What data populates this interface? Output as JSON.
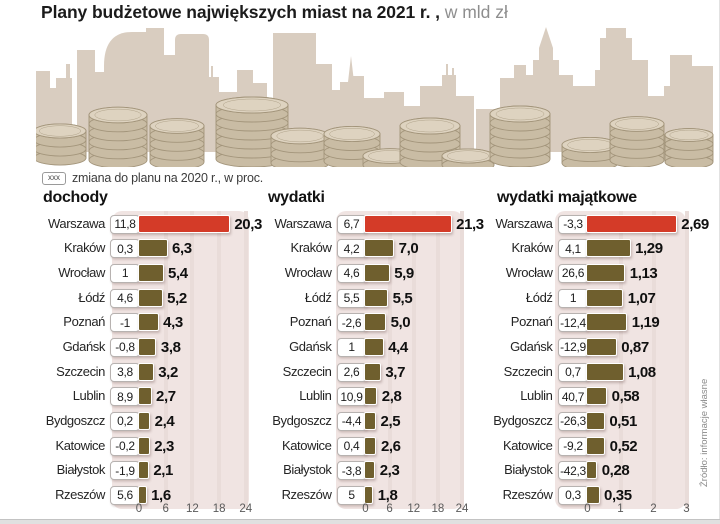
{
  "title": {
    "main": "Plany budżetowe największych miast na 2021 r. ,",
    "unit": "w mld zł"
  },
  "legend": {
    "marker": "xxx",
    "text": "zmiana do planu na 2020 r., w proc."
  },
  "source_note": "Źródło: informacje własne",
  "colors": {
    "highlight_bar": "#d43b28",
    "bar": "#6f5f2e",
    "panel_background": "#f0e4e2",
    "gridline": "#e9dcd9",
    "skyline": "#d9cdc0",
    "coin_side": "#c9bca4",
    "coin_top": "#ded3c0",
    "coin_stroke": "#a3957b",
    "title_text": "#1b1b1b",
    "unit_text": "#8e8e8e"
  },
  "chart_data": [
    {
      "type": "bar",
      "title": "dochody",
      "unit": "mld zł",
      "categories": [
        "Warszawa",
        "Kraków",
        "Wrocław",
        "Łódź",
        "Poznań",
        "Gdańsk",
        "Szczecin",
        "Lublin",
        "Bydgoszcz",
        "Katowice",
        "Białystok",
        "Rzeszów"
      ],
      "series": [
        {
          "name": "plan na 2021 (mld zł)",
          "values": [
            20.3,
            6.3,
            5.4,
            5.2,
            4.3,
            3.8,
            3.2,
            2.7,
            2.4,
            2.3,
            2.1,
            1.6
          ]
        },
        {
          "name": "zmiana do planu na 2020 r. (proc.)",
          "values": [
            11.8,
            0.3,
            1,
            4.6,
            -1,
            -0.8,
            3.8,
            8.9,
            0.2,
            -0.2,
            -1.9,
            5.6
          ]
        }
      ],
      "value_labels": [
        "20,3",
        "6,3",
        "5,4",
        "5,2",
        "4,3",
        "3,8",
        "3,2",
        "2,7",
        "2,4",
        "2,3",
        "2,1",
        "1,6"
      ],
      "change_labels": [
        "11,8",
        "0,3",
        "1",
        "4,6",
        "-1",
        "-0,8",
        "3,8",
        "8,9",
        "0,2",
        "-0,2",
        "-1,9",
        "5,6"
      ],
      "xticks": [
        "0",
        "6",
        "12",
        "18",
        "24"
      ],
      "xlim": [
        0,
        24.7
      ],
      "highlight_category": "Warszawa",
      "grid": "vertical",
      "legend_position": "none"
    },
    {
      "type": "bar",
      "title": "wydatki",
      "unit": "mld zł",
      "categories": [
        "Warszawa",
        "Kraków",
        "Wrocław",
        "Łódź",
        "Poznań",
        "Gdańsk",
        "Szczecin",
        "Lublin",
        "Bydgoszcz",
        "Katowice",
        "Białystok",
        "Rzeszów"
      ],
      "series": [
        {
          "name": "plan na 2021 (mld zł)",
          "values": [
            21.3,
            7.0,
            5.9,
            5.5,
            5.0,
            4.4,
            3.7,
            2.8,
            2.5,
            2.6,
            2.3,
            1.8
          ]
        },
        {
          "name": "zmiana do planu na 2020 r. (proc.)",
          "values": [
            6.7,
            4.2,
            4.6,
            5.5,
            -2.6,
            1,
            2.6,
            10.9,
            -4.4,
            0.4,
            -3.8,
            5
          ]
        }
      ],
      "value_labels": [
        "21,3",
        "7,0",
        "5,9",
        "5,5",
        "5,0",
        "4,4",
        "3,7",
        "2,8",
        "2,5",
        "2,6",
        "2,3",
        "1,8"
      ],
      "change_labels": [
        "6,7",
        "4,2",
        "4,6",
        "5,5",
        "-2,6",
        "1",
        "2,6",
        "10,9",
        "-4,4",
        "0,4",
        "-3,8",
        "5"
      ],
      "xticks": [
        "0",
        "6",
        "12",
        "18",
        "24"
      ],
      "xlim": [
        0,
        24.2
      ],
      "highlight_category": "Warszawa",
      "grid": "vertical",
      "legend_position": "none"
    },
    {
      "type": "bar",
      "title": "wydatki majątkowe",
      "unit": "mld zł",
      "categories": [
        "Warszawa",
        "Kraków",
        "Wrocław",
        "Łódź",
        "Poznań",
        "Gdańsk",
        "Szczecin",
        "Lublin",
        "Bydgoszcz",
        "Katowice",
        "Białystok",
        "Rzeszów"
      ],
      "series": [
        {
          "name": "plan na 2021 (mld zł)",
          "values": [
            2.69,
            1.29,
            1.13,
            1.07,
            1.19,
            0.87,
            1.08,
            0.58,
            0.51,
            0.52,
            0.28,
            0.35
          ]
        },
        {
          "name": "zmiana do planu na 2020 r. (proc.)",
          "values": [
            -3.3,
            4.1,
            26.6,
            1,
            -12.4,
            -12.9,
            0.7,
            40.7,
            -26.3,
            -9.2,
            -42.3,
            0.3
          ]
        }
      ],
      "value_labels": [
        "2,69",
        "1,29",
        "1,13",
        "1,07",
        "1,19",
        "0,87",
        "1,08",
        "0,58",
        "0,51",
        "0,52",
        "0,28",
        "0,35"
      ],
      "change_labels": [
        "-3,3",
        "4,1",
        "26,6",
        "1",
        "-12,4",
        "-12,9",
        "0,7",
        "40,7",
        "-26,3",
        "-9,2",
        "-42,3",
        "0,3"
      ],
      "xticks": [
        "0",
        "1",
        "2",
        "3"
      ],
      "xlim": [
        0,
        3
      ],
      "highlight_category": "Warszawa",
      "grid": "vertical",
      "legend_position": "none"
    }
  ]
}
